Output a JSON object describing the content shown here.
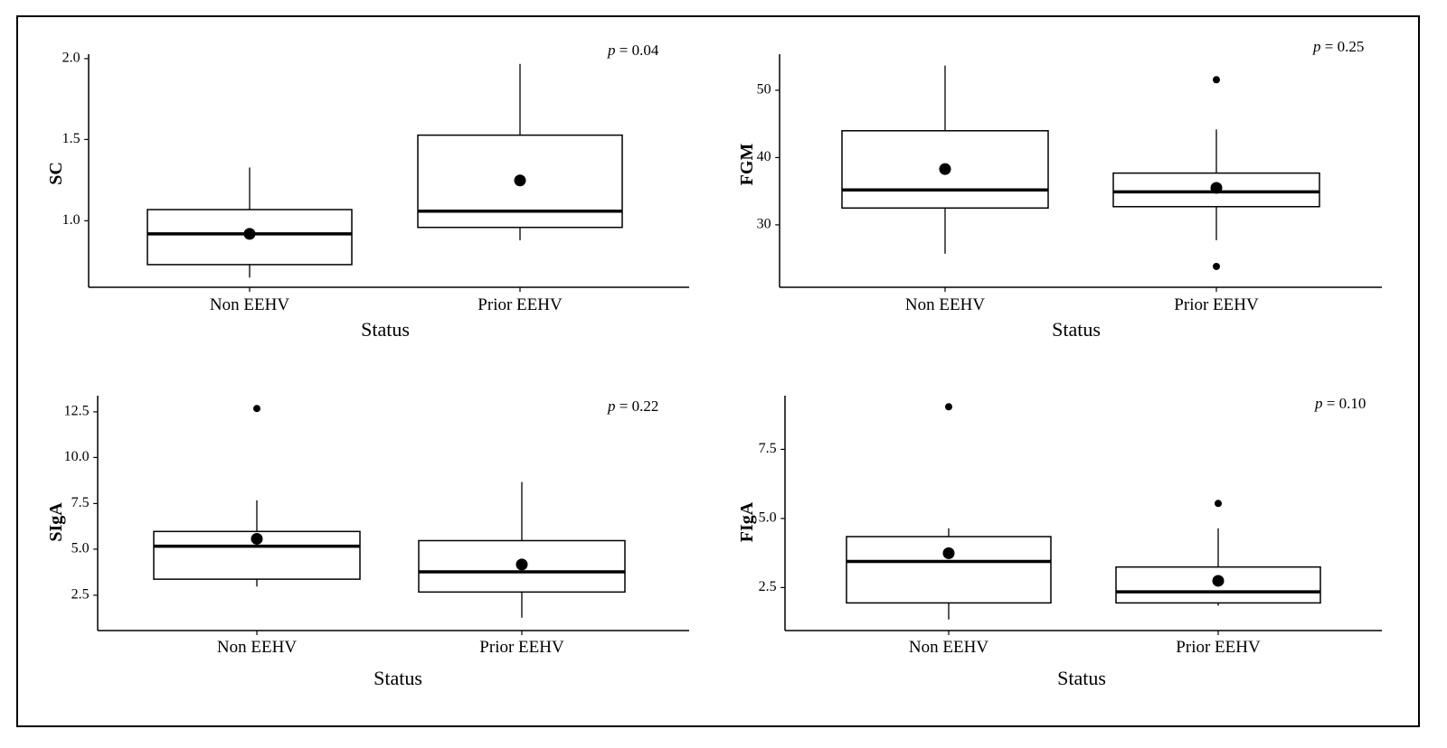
{
  "chart_data": [
    {
      "type": "box",
      "ylabel": "SC",
      "xlabel": "Status",
      "annotation": {
        "prefix": "p",
        "text": " = 0.04"
      },
      "ylim": [
        0.58,
        2.02
      ],
      "yticks": [
        1.0,
        1.5,
        2.0
      ],
      "ytick_labels": [
        "1.0 -",
        "1.5 -",
        "2.0 -"
      ],
      "categories": [
        "Non EEHV",
        "Prior EEHV"
      ],
      "boxes": [
        {
          "q1": 0.72,
          "median": 0.91,
          "q3": 1.06,
          "whisker_low": 0.64,
          "whisker_high": 1.32,
          "mean": 0.91,
          "outliers": []
        },
        {
          "q1": 0.95,
          "median": 1.05,
          "q3": 1.52,
          "whisker_low": 0.87,
          "whisker_high": 1.96,
          "mean": 1.24,
          "outliers": []
        }
      ]
    },
    {
      "type": "box",
      "ylabel": "FGM",
      "xlabel": "Status",
      "annotation": {
        "prefix": "p",
        "text": " = 0.25"
      },
      "ylim": [
        20.5,
        55.2
      ],
      "yticks": [
        30,
        40,
        50
      ],
      "ytick_labels": [
        "30 -",
        "40 -",
        "50 -"
      ],
      "categories": [
        "Non EEHV",
        "Prior EEHV"
      ],
      "boxes": [
        {
          "q1": 32.3,
          "median": 35.0,
          "q3": 43.8,
          "whisker_low": 25.5,
          "whisker_high": 53.5,
          "mean": 38.1,
          "outliers": []
        },
        {
          "q1": 32.5,
          "median": 34.7,
          "q3": 37.5,
          "whisker_low": 27.5,
          "whisker_high": 44.0,
          "mean": 35.3,
          "outliers": [
            51.4,
            23.6
          ]
        }
      ]
    },
    {
      "type": "box",
      "ylabel": "SIgA",
      "xlabel": "Status",
      "annotation": {
        "prefix": "p",
        "text": " = 0.22"
      },
      "ylim": [
        0.5,
        13.3
      ],
      "yticks": [
        2.5,
        5.0,
        7.5,
        10.0,
        12.5
      ],
      "ytick_labels": [
        "2.5 -",
        "5.0 -",
        "7.5 -",
        "10.0 -",
        "12.5 -"
      ],
      "categories": [
        "Non EEHV",
        "Prior EEHV"
      ],
      "boxes": [
        {
          "q1": 3.3,
          "median": 5.1,
          "q3": 5.9,
          "whisker_low": 2.9,
          "whisker_high": 7.6,
          "mean": 5.5,
          "outliers": [
            12.6
          ]
        },
        {
          "q1": 2.6,
          "median": 3.7,
          "q3": 5.4,
          "whisker_low": 1.2,
          "whisker_high": 8.6,
          "mean": 4.1,
          "outliers": []
        }
      ]
    },
    {
      "type": "box",
      "ylabel": "FIgA",
      "xlabel": "Status",
      "annotation": {
        "prefix": "p",
        "text": " = 0.10"
      },
      "ylim": [
        0.9,
        9.4
      ],
      "yticks": [
        2.5,
        5.0,
        7.5
      ],
      "ytick_labels": [
        "2.5 -",
        "5.0 -",
        "7.5 -"
      ],
      "categories": [
        "Non EEHV",
        "Prior EEHV"
      ],
      "boxes": [
        {
          "q1": 1.9,
          "median": 3.4,
          "q3": 4.3,
          "whisker_low": 1.3,
          "whisker_high": 4.6,
          "mean": 3.7,
          "outliers": [
            9.0
          ]
        },
        {
          "q1": 1.9,
          "median": 2.3,
          "q3": 3.2,
          "whisker_low": 1.8,
          "whisker_high": 4.6,
          "mean": 2.7,
          "outliers": [
            5.5
          ]
        }
      ]
    }
  ]
}
